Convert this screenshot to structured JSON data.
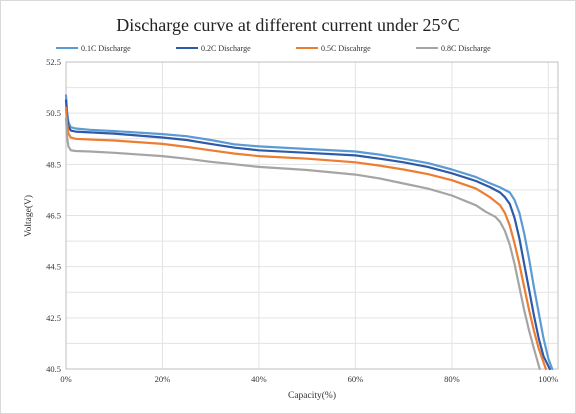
{
  "chart_data": {
    "type": "line",
    "title": "Discharge curve at different current under 25°C",
    "xlabel": "Capacity(%)",
    "ylabel": "Voltage(V)",
    "xlim": [
      0,
      102
    ],
    "ylim": [
      40.5,
      52.5
    ],
    "x_ticks": [
      0,
      20,
      40,
      60,
      80,
      100
    ],
    "x_tick_labels": [
      "0%",
      "20%",
      "40%",
      "60%",
      "80%",
      "100%"
    ],
    "y_ticks": [
      40.5,
      42.5,
      44.5,
      46.5,
      48.5,
      50.5,
      52.5
    ],
    "y_tick_labels": [
      "40.5",
      "42.5",
      "44.5",
      "46.5",
      "48.5",
      "50.5",
      "52.5"
    ],
    "grid": true,
    "legend_position": "top",
    "series": [
      {
        "name": "0.1C Discharge",
        "color": "#5b9bd5",
        "x": [
          0,
          0.2,
          0.5,
          1,
          2,
          5,
          10,
          20,
          25,
          30,
          35,
          40,
          50,
          60,
          65,
          70,
          75,
          80,
          85,
          88,
          90,
          92,
          93,
          94,
          95,
          96,
          97,
          98,
          99,
          100,
          100.8
        ],
        "y": [
          51.2,
          50.6,
          50.15,
          49.95,
          49.9,
          49.85,
          49.8,
          49.68,
          49.6,
          49.45,
          49.28,
          49.2,
          49.1,
          49.0,
          48.88,
          48.72,
          48.55,
          48.3,
          48.0,
          47.75,
          47.6,
          47.4,
          47.1,
          46.6,
          45.8,
          44.8,
          43.7,
          42.7,
          41.7,
          40.9,
          40.5
        ]
      },
      {
        "name": "0.2C Discharge",
        "color": "#2e5aa7",
        "x": [
          0,
          0.2,
          0.5,
          1,
          2,
          5,
          10,
          20,
          25,
          30,
          35,
          40,
          50,
          60,
          65,
          70,
          75,
          80,
          85,
          88,
          90,
          91,
          92,
          93,
          94,
          95,
          96,
          97,
          98,
          99,
          100.3
        ],
        "y": [
          51.0,
          50.4,
          50.0,
          49.82,
          49.78,
          49.75,
          49.7,
          49.55,
          49.45,
          49.3,
          49.15,
          49.05,
          48.95,
          48.85,
          48.72,
          48.58,
          48.4,
          48.15,
          47.85,
          47.6,
          47.4,
          47.22,
          46.95,
          46.4,
          45.6,
          44.6,
          43.6,
          42.6,
          41.7,
          41.0,
          40.5
        ]
      },
      {
        "name": "0.5C Discahrge",
        "color": "#ed7d31",
        "x": [
          0,
          0.2,
          0.5,
          1,
          2,
          5,
          10,
          20,
          25,
          30,
          35,
          40,
          50,
          60,
          65,
          70,
          75,
          80,
          85,
          88,
          90,
          91,
          92,
          93,
          94,
          95,
          96,
          97,
          98,
          99.5
        ],
        "y": [
          50.7,
          50.1,
          49.7,
          49.55,
          49.5,
          49.47,
          49.43,
          49.3,
          49.18,
          49.05,
          48.92,
          48.82,
          48.72,
          48.58,
          48.45,
          48.3,
          48.12,
          47.88,
          47.55,
          47.2,
          46.9,
          46.6,
          46.1,
          45.4,
          44.6,
          43.7,
          42.8,
          42.0,
          41.3,
          40.5
        ]
      },
      {
        "name": "0.8C Discharge",
        "color": "#a5a5a5",
        "x": [
          0,
          0.2,
          0.5,
          1,
          2,
          5,
          10,
          20,
          25,
          30,
          35,
          40,
          50,
          60,
          65,
          70,
          75,
          80,
          85,
          87,
          89,
          90,
          91,
          92,
          93,
          94,
          95,
          96,
          97,
          98.2
        ],
        "y": [
          50.3,
          49.6,
          49.2,
          49.05,
          49.02,
          49.0,
          48.95,
          48.82,
          48.72,
          48.6,
          48.5,
          48.4,
          48.28,
          48.1,
          47.95,
          47.75,
          47.55,
          47.28,
          46.9,
          46.65,
          46.45,
          46.25,
          45.9,
          45.35,
          44.6,
          43.7,
          42.8,
          42.0,
          41.3,
          40.5
        ]
      }
    ]
  }
}
